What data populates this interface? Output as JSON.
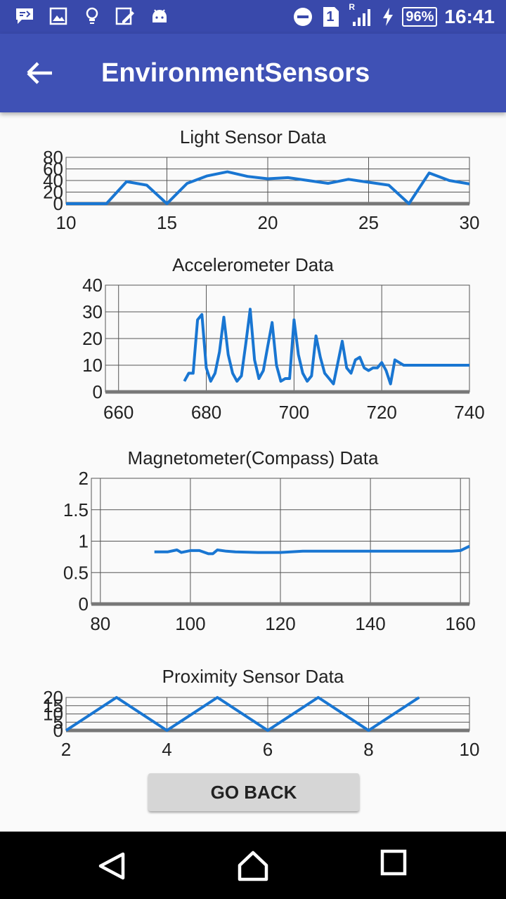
{
  "status_bar": {
    "battery": "96%",
    "time": "16:41",
    "sim_number": "1",
    "roaming": "R",
    "icons": [
      "notification-icon",
      "image-icon",
      "lightbulb-icon",
      "edit-icon",
      "android-icon",
      "do-not-disturb-icon",
      "sim-icon",
      "signal-icon",
      "charging-icon",
      "battery-icon"
    ]
  },
  "app_bar": {
    "title": "EnvironmentSensors"
  },
  "charts": {
    "light": {
      "title": "Light Sensor Data",
      "x_ticks": [
        "10",
        "15",
        "20",
        "25",
        "30"
      ],
      "y_ticks": [
        "0",
        "20",
        "40",
        "60",
        "80"
      ]
    },
    "accel": {
      "title": "Accelerometer Data",
      "x_ticks": [
        "660",
        "680",
        "700",
        "720",
        "740"
      ],
      "y_ticks": [
        "0",
        "10",
        "20",
        "30",
        "40"
      ]
    },
    "mag": {
      "title": "Magnetometer(Compass) Data",
      "x_ticks": [
        "80",
        "100",
        "120",
        "140",
        "160"
      ],
      "y_ticks": [
        "0",
        "0.5",
        "1",
        "1.5",
        "2"
      ]
    },
    "prox": {
      "title": "Proximity Sensor Data",
      "x_ticks": [
        "2",
        "4",
        "6",
        "8",
        "10"
      ],
      "y_ticks": [
        "0",
        "5",
        "10",
        "15",
        "20"
      ]
    }
  },
  "chart_data": [
    {
      "type": "line",
      "title": "Light Sensor Data",
      "xlim": [
        10,
        30
      ],
      "ylim": [
        0,
        80
      ],
      "grid": true,
      "x": [
        10,
        11,
        12,
        13,
        14,
        15,
        16,
        17,
        18,
        19,
        20,
        21,
        22,
        23,
        24,
        25,
        26,
        27,
        28,
        29,
        30
      ],
      "y": [
        0,
        0,
        0,
        38,
        32,
        0,
        35,
        48,
        55,
        47,
        43,
        45,
        40,
        35,
        42,
        37,
        32,
        0,
        53,
        40,
        34
      ]
    },
    {
      "type": "line",
      "title": "Accelerometer Data",
      "xlim": [
        657,
        740
      ],
      "ylim": [
        0,
        40
      ],
      "grid": true,
      "x": [
        675,
        676,
        677,
        678,
        679,
        680,
        681,
        682,
        683,
        684,
        685,
        686,
        687,
        688,
        689,
        690,
        691,
        692,
        693,
        694,
        695,
        696,
        697,
        698,
        699,
        700,
        701,
        702,
        703,
        704,
        705,
        706,
        707,
        708,
        709,
        710,
        711,
        712,
        713,
        714,
        715,
        716,
        717,
        718,
        719,
        720,
        721,
        722,
        723,
        724,
        725,
        726,
        727,
        728,
        729,
        730,
        735,
        740
      ],
      "y": [
        4,
        7,
        7,
        27,
        29,
        9,
        4,
        7,
        15,
        28,
        14,
        7,
        4,
        6,
        18,
        31,
        12,
        5,
        8,
        17,
        26,
        10,
        4,
        5,
        5,
        27,
        14,
        7,
        4,
        6,
        21,
        13,
        7,
        5,
        3,
        11,
        19,
        9,
        7,
        12,
        13,
        9,
        8,
        9,
        9,
        11,
        8,
        3,
        12,
        11,
        10,
        10,
        10,
        10,
        10,
        10,
        10,
        10
      ]
    },
    {
      "type": "line",
      "title": "Magnetometer(Compass) Data",
      "xlim": [
        78,
        162
      ],
      "ylim": [
        0,
        2
      ],
      "grid": true,
      "x": [
        92,
        95,
        97,
        98,
        100,
        102,
        104,
        105,
        106,
        108,
        110,
        115,
        120,
        125,
        130,
        140,
        150,
        158,
        160,
        162
      ],
      "y": [
        0.83,
        0.83,
        0.86,
        0.82,
        0.85,
        0.85,
        0.8,
        0.8,
        0.86,
        0.84,
        0.83,
        0.82,
        0.82,
        0.84,
        0.84,
        0.84,
        0.84,
        0.84,
        0.85,
        0.92
      ]
    },
    {
      "type": "line",
      "title": "Proximity Sensor Data",
      "xlim": [
        2,
        10
      ],
      "ylim": [
        0,
        20
      ],
      "grid": true,
      "x": [
        2,
        3,
        4,
        5,
        6,
        7,
        8,
        9
      ],
      "y": [
        0,
        20,
        0,
        20,
        0,
        20,
        0,
        20
      ]
    }
  ],
  "button": {
    "go_back": "GO BACK"
  },
  "nav_bar": {
    "icons": [
      "back-icon",
      "home-icon",
      "recents-icon"
    ]
  }
}
